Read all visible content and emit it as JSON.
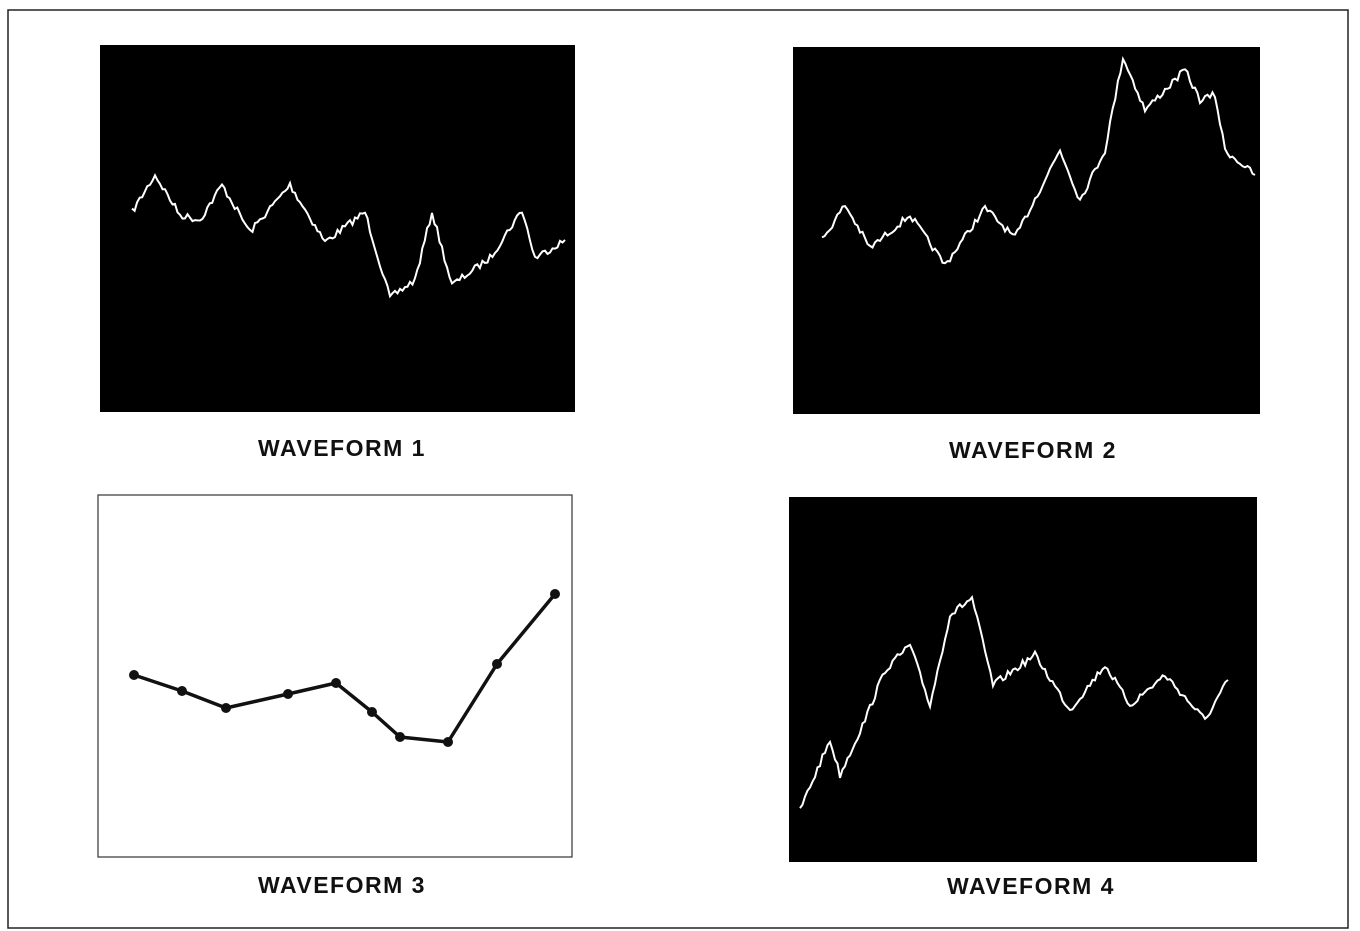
{
  "panels": [
    {
      "label": "WAVEFORM 1"
    },
    {
      "label": "WAVEFORM 2"
    },
    {
      "label": "WAVEFORM 3"
    },
    {
      "label": "WAVEFORM 4"
    }
  ]
}
